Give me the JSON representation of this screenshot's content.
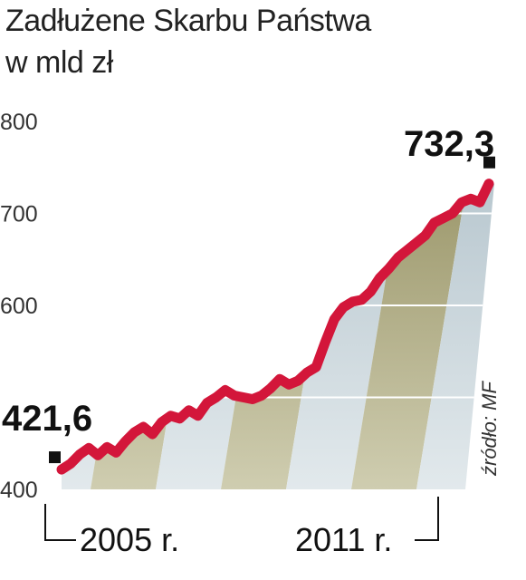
{
  "chart_data": {
    "type": "area",
    "title": "Zadłużene Skarbu Państwa",
    "subtitle": "w mld zł",
    "ylim": [
      400,
      800
    ],
    "y_ticks": [
      "800",
      "700",
      "600",
      "400"
    ],
    "x_labels": [
      "2005 r.",
      "2011 r."
    ],
    "source": "źródło: MF",
    "start_label": "421,6",
    "end_label": "732,3",
    "series": [
      {
        "values": [
          421.6,
          428,
          438,
          445,
          437,
          446,
          440,
          452,
          462,
          468,
          460,
          473,
          480,
          477,
          486,
          480,
          494,
          500,
          508,
          502,
          500,
          498,
          502,
          510,
          520,
          514,
          518,
          527,
          533,
          560,
          585,
          598,
          604,
          606,
          615,
          630,
          640,
          652,
          660,
          668,
          676,
          690,
          695,
          700,
          712,
          716,
          712,
          732.3
        ]
      }
    ],
    "colors": {
      "line": "#d3163a",
      "band_dark": "#9e9a6c",
      "band_light": "#c6d2d8",
      "grid": "#ffffff"
    }
  }
}
